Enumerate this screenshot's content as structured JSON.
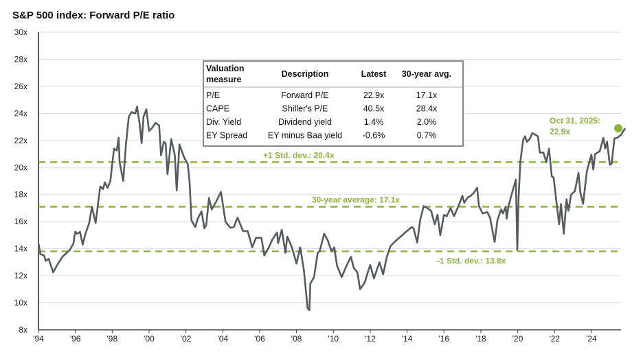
{
  "chart_data": {
    "type": "line",
    "title": "S&P 500 index: Forward P/E ratio",
    "ylim": [
      8,
      30
    ],
    "yticks": [
      8,
      10,
      12,
      14,
      16,
      18,
      20,
      22,
      24,
      26,
      28,
      30
    ],
    "ytick_labels": [
      "8x",
      "10x",
      "12x",
      "14x",
      "16x",
      "18x",
      "20x",
      "22x",
      "24x",
      "26x",
      "28x",
      "30x"
    ],
    "xlim": [
      1994,
      2026
    ],
    "xticks": [
      1994,
      1996,
      1998,
      2000,
      2002,
      2004,
      2006,
      2008,
      2010,
      2012,
      2014,
      2016,
      2018,
      2020,
      2022,
      2024
    ],
    "xtick_labels": [
      "'94",
      "'96",
      "'98",
      "'00",
      "'02",
      "'04",
      "'06",
      "'08",
      "'10",
      "'12",
      "'14",
      "'16",
      "'18",
      "'20",
      "'22",
      "'24"
    ],
    "grid": "horizontal",
    "colors": {
      "series": "#555B60",
      "reference": "#8DB33A",
      "grid": "#DDDDDD"
    },
    "series": [
      {
        "x": [
          1994.0,
          1994.1,
          1994.3,
          1994.4,
          1994.55,
          1994.8,
          1995.0,
          1995.3,
          1995.7,
          1995.9,
          1995.95,
          1996.0,
          1996.1,
          1996.25,
          1996.4,
          1996.55,
          1996.75,
          1996.9,
          1997.1,
          1997.35,
          1997.5,
          1997.6,
          1997.75,
          1997.9,
          1998.1,
          1998.25,
          1998.35,
          1998.4,
          1998.6,
          1998.75,
          1998.9,
          1999.05,
          1999.25,
          1999.35,
          1999.5,
          1999.6,
          1999.7,
          1999.85,
          2000.0,
          2000.15,
          2000.35,
          2000.55,
          2000.65,
          2000.8,
          2000.9,
          2001.0,
          2001.2,
          2001.4,
          2001.5,
          2001.65,
          2001.9,
          2002.1,
          2002.2,
          2002.3,
          2002.5,
          2002.65,
          2002.85,
          2003.0,
          2003.1,
          2003.25,
          2003.4,
          2003.65,
          2003.9,
          2004.15,
          2004.4,
          2004.6,
          2004.8,
          2005.1,
          2005.35,
          2005.6,
          2005.8,
          2006.1,
          2006.25,
          2006.5,
          2006.7,
          2006.95,
          2007.0,
          2007.2,
          2007.4,
          2007.5,
          2007.75,
          2008.0,
          2008.2,
          2008.4,
          2008.6,
          2008.7,
          2008.75,
          2008.95,
          2009.15,
          2009.25,
          2009.5,
          2009.7,
          2009.9,
          2010.05,
          2010.2,
          2010.45,
          2010.7,
          2010.95,
          2011.1,
          2011.3,
          2011.45,
          2011.7,
          2011.9,
          2012.0,
          2012.2,
          2012.5,
          2012.7,
          2012.9,
          2013.1,
          2013.4,
          2013.7,
          2013.9,
          2014.25,
          2014.35,
          2014.55,
          2014.7,
          2014.9,
          2015.1,
          2015.3,
          2015.5,
          2015.65,
          2015.8,
          2016.0,
          2016.15,
          2016.35,
          2016.55,
          2016.8,
          2017.0,
          2017.1,
          2017.3,
          2017.45,
          2017.6,
          2017.8,
          2017.9,
          2018.1,
          2018.35,
          2018.5,
          2018.75,
          2018.9,
          2019.1,
          2019.2,
          2019.35,
          2019.4,
          2019.5,
          2019.7,
          2019.9,
          2019.98,
          2020.05,
          2020.15,
          2020.3,
          2020.4,
          2020.5,
          2020.65,
          2020.8,
          2021.1,
          2021.2,
          2021.4,
          2021.55,
          2021.7,
          2021.85,
          2021.95,
          2022.1,
          2022.25,
          2022.35,
          2022.5,
          2022.65,
          2022.75,
          2022.9,
          2023.1,
          2023.3,
          2023.4,
          2023.55,
          2023.75,
          2024.0,
          2024.1,
          2024.2,
          2024.45,
          2024.65,
          2024.75,
          2024.85,
          2025.0,
          2025.1,
          2025.25,
          2025.4,
          2025.6,
          2025.83
        ],
        "y": [
          14.4,
          13.6,
          13.5,
          13.1,
          13.25,
          12.25,
          12.75,
          13.4,
          13.9,
          14.4,
          14.9,
          15.25,
          15.1,
          15.25,
          14.3,
          15.1,
          15.9,
          17.1,
          15.9,
          18.6,
          18.4,
          18.9,
          18.5,
          19.0,
          21.4,
          21.25,
          22.2,
          20.4,
          19.0,
          21.75,
          23.75,
          24.1,
          24.0,
          24.5,
          23.1,
          21.8,
          23.75,
          24.3,
          22.7,
          22.9,
          23.3,
          23.1,
          20.9,
          21.9,
          21.8,
          19.5,
          22.1,
          20.9,
          18.3,
          21.7,
          20.75,
          20.25,
          18.9,
          16.1,
          15.6,
          16.25,
          16.75,
          15.5,
          15.75,
          17.75,
          16.9,
          17.5,
          18.2,
          16.0,
          15.55,
          15.6,
          16.3,
          15.3,
          15.3,
          14.1,
          14.8,
          14.8,
          13.5,
          14.1,
          14.7,
          15.2,
          14.4,
          15.4,
          13.7,
          14.9,
          14.1,
          12.9,
          14.1,
          12.4,
          9.6,
          9.45,
          11.4,
          11.9,
          13.7,
          13.8,
          15.1,
          14.6,
          13.8,
          14.1,
          12.75,
          11.9,
          12.7,
          13.4,
          12.6,
          12.25,
          11.0,
          11.5,
          12.4,
          12.8,
          11.8,
          13.0,
          12.1,
          13.4,
          14.2,
          14.6,
          14.95,
          15.2,
          15.6,
          15.5,
          14.45,
          16.05,
          17.15,
          17.0,
          16.8,
          15.8,
          16.5,
          15.0,
          16.5,
          16.4,
          17.0,
          16.4,
          17.2,
          17.9,
          17.4,
          17.8,
          17.9,
          18.1,
          18.5,
          17.15,
          16.6,
          16.7,
          16.3,
          14.5,
          16.1,
          16.9,
          16.6,
          17.1,
          16.2,
          17.15,
          18.15,
          19.1,
          13.9,
          17.8,
          20.5,
          22.05,
          22.3,
          21.9,
          22.1,
          22.55,
          22.3,
          21.1,
          21.1,
          20.4,
          21.4,
          19.35,
          19.25,
          17.5,
          15.8,
          17.3,
          15.1,
          17.65,
          16.8,
          18.0,
          18.25,
          19.6,
          18.15,
          17.3,
          19.7,
          20.95,
          19.85,
          21.0,
          21.2,
          22.2,
          21.4,
          21.9,
          20.2,
          20.3,
          22.15,
          22.2,
          22.4,
          22.9
        ]
      }
    ],
    "reference_lines": [
      {
        "value": 20.4,
        "label": "+1 Std. dev.: 20.4x"
      },
      {
        "value": 17.1,
        "label": "30-year average: 17.1x"
      },
      {
        "value": 13.8,
        "label": "-1 Std. dev.: 13.8x"
      }
    ],
    "annotation": {
      "line1": "Oct 31, 2025:",
      "line2": "22.9x",
      "value": 22.9
    },
    "table": {
      "headers": [
        "Valuation measure",
        "Description",
        "Latest",
        "30-year avg."
      ],
      "header_line1": "Valuation",
      "header_line2": "measure",
      "rows": [
        [
          "P/E",
          "Forward P/E",
          "22.9x",
          "17.1x"
        ],
        [
          "CAPE",
          "Shiller's P/E",
          "40.5x",
          "28.4x"
        ],
        [
          "Div. Yield",
          "Dividend yield",
          "1.4%",
          "2.0%"
        ],
        [
          "EY Spread",
          "EY minus Baa yield",
          "-0.6%",
          "0.7%"
        ]
      ]
    }
  }
}
